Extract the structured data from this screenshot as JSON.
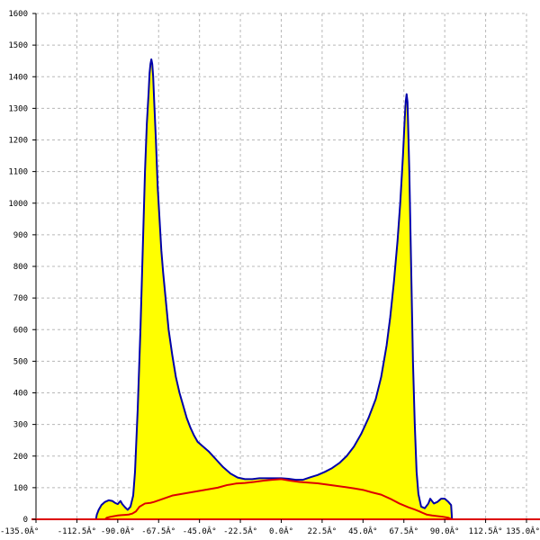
{
  "chart_data": {
    "type": "area",
    "title": "",
    "xlabel": "",
    "ylabel": "",
    "xlim": [
      -135,
      135
    ],
    "ylim": [
      0,
      1600
    ],
    "grid": true,
    "x_ticks": [
      -135,
      -112.5,
      -90,
      -67.5,
      -45,
      -22.5,
      0,
      22.5,
      45,
      67.5,
      90,
      112.5,
      135
    ],
    "x_tick_labels": [
      "-135.0Â°",
      "-112.5Â°",
      "-90.0Â°",
      "-67.5Â°",
      "-45.0Â°",
      "-22.5Â°",
      "0.0Â°",
      "22.5Â°",
      "45.0Â°",
      "67.5Â°",
      "90.0Â°",
      "112.5Â°",
      "135.0Â°"
    ],
    "y_ticks": [
      0,
      100,
      200,
      300,
      400,
      500,
      600,
      700,
      800,
      900,
      1000,
      1100,
      1200,
      1300,
      1400,
      1500,
      1600
    ],
    "y_tick_labels": [
      "0",
      "100",
      "200",
      "300",
      "400",
      "500",
      "600",
      "700",
      "800",
      "900",
      "1000",
      "1100",
      "1200",
      "1300",
      "1400",
      "1500",
      "1600"
    ],
    "colors": {
      "fill": "#ffff00",
      "outline": "#0000aa",
      "secondary": "#dd0000",
      "grid": "#b8b8b8",
      "axis": "#000000"
    },
    "series": [
      {
        "values": [
          [
            -102,
            0
          ],
          [
            -101.5,
            15
          ],
          [
            -100.5,
            30
          ],
          [
            -99,
            45
          ],
          [
            -97,
            55
          ],
          [
            -95,
            60
          ],
          [
            -93,
            58
          ],
          [
            -91.5,
            52
          ],
          [
            -90,
            48
          ],
          [
            -88.5,
            58
          ],
          [
            -87.5,
            48
          ],
          [
            -86,
            38
          ],
          [
            -84.5,
            30
          ],
          [
            -83,
            40
          ],
          [
            -81.5,
            75
          ],
          [
            -80.5,
            150
          ],
          [
            -79,
            350
          ],
          [
            -77.5,
            600
          ],
          [
            -76,
            900
          ],
          [
            -75,
            1100
          ],
          [
            -74,
            1250
          ],
          [
            -73,
            1350
          ],
          [
            -72.5,
            1410
          ],
          [
            -72,
            1440
          ],
          [
            -71.5,
            1455
          ],
          [
            -71,
            1440
          ],
          [
            -70.5,
            1400
          ],
          [
            -70,
            1330
          ],
          [
            -69,
            1200
          ],
          [
            -68,
            1050
          ],
          [
            -67,
            950
          ],
          [
            -66,
            850
          ],
          [
            -65,
            780
          ],
          [
            -64,
            720
          ],
          [
            -63,
            660
          ],
          [
            -62,
            600
          ],
          [
            -60,
            520
          ],
          [
            -58,
            450
          ],
          [
            -56,
            400
          ],
          [
            -54,
            360
          ],
          [
            -52,
            320
          ],
          [
            -50,
            290
          ],
          [
            -48,
            265
          ],
          [
            -46,
            245
          ],
          [
            -44,
            235
          ],
          [
            -40,
            215
          ],
          [
            -36,
            190
          ],
          [
            -32,
            165
          ],
          [
            -28,
            145
          ],
          [
            -24,
            132
          ],
          [
            -20,
            127
          ],
          [
            -16,
            127
          ],
          [
            -12,
            130
          ],
          [
            -8,
            130
          ],
          [
            -4,
            130
          ],
          [
            0,
            130
          ],
          [
            4,
            128
          ],
          [
            8,
            125
          ],
          [
            12,
            125
          ],
          [
            16,
            133
          ],
          [
            20,
            140
          ],
          [
            24,
            150
          ],
          [
            28,
            162
          ],
          [
            32,
            178
          ],
          [
            36,
            200
          ],
          [
            40,
            230
          ],
          [
            44,
            270
          ],
          [
            48,
            320
          ],
          [
            52,
            380
          ],
          [
            55,
            450
          ],
          [
            58,
            550
          ],
          [
            60,
            640
          ],
          [
            62,
            750
          ],
          [
            64,
            880
          ],
          [
            65.5,
            1000
          ],
          [
            67,
            1150
          ],
          [
            68,
            1270
          ],
          [
            68.5,
            1320
          ],
          [
            69,
            1345
          ],
          [
            69.5,
            1320
          ],
          [
            70.5,
            1100
          ],
          [
            71.5,
            800
          ],
          [
            72.5,
            500
          ],
          [
            73.5,
            300
          ],
          [
            74.5,
            150
          ],
          [
            75.5,
            80
          ],
          [
            77,
            40
          ],
          [
            79,
            35
          ],
          [
            81,
            50
          ],
          [
            82,
            65
          ],
          [
            84,
            50
          ],
          [
            86,
            55
          ],
          [
            88,
            65
          ],
          [
            90,
            65
          ],
          [
            92,
            55
          ],
          [
            93.5,
            45
          ],
          [
            94,
            0
          ]
        ]
      },
      {
        "values": [
          [
            -97,
            0
          ],
          [
            -96,
            5
          ],
          [
            -94,
            8
          ],
          [
            -92,
            10
          ],
          [
            -90,
            12
          ],
          [
            -88,
            13
          ],
          [
            -86,
            14
          ],
          [
            -84,
            15
          ],
          [
            -82,
            18
          ],
          [
            -80,
            25
          ],
          [
            -78,
            40
          ],
          [
            -75,
            50
          ],
          [
            -72,
            52
          ],
          [
            -70,
            55
          ],
          [
            -65,
            65
          ],
          [
            -60,
            75
          ],
          [
            -55,
            80
          ],
          [
            -50,
            85
          ],
          [
            -45,
            90
          ],
          [
            -40,
            95
          ],
          [
            -35,
            100
          ],
          [
            -30,
            108
          ],
          [
            -25,
            113
          ],
          [
            -20,
            115
          ],
          [
            -15,
            118
          ],
          [
            -10,
            122
          ],
          [
            -5,
            125
          ],
          [
            0,
            127
          ],
          [
            5,
            122
          ],
          [
            10,
            118
          ],
          [
            15,
            116
          ],
          [
            20,
            114
          ],
          [
            25,
            110
          ],
          [
            30,
            106
          ],
          [
            35,
            102
          ],
          [
            40,
            98
          ],
          [
            45,
            93
          ],
          [
            50,
            85
          ],
          [
            55,
            78
          ],
          [
            60,
            65
          ],
          [
            65,
            50
          ],
          [
            70,
            38
          ],
          [
            73,
            32
          ],
          [
            76,
            25
          ],
          [
            78,
            20
          ],
          [
            80,
            15
          ],
          [
            83,
            12
          ],
          [
            86,
            10
          ],
          [
            89,
            8
          ],
          [
            92,
            5
          ],
          [
            94,
            0
          ]
        ]
      }
    ]
  }
}
